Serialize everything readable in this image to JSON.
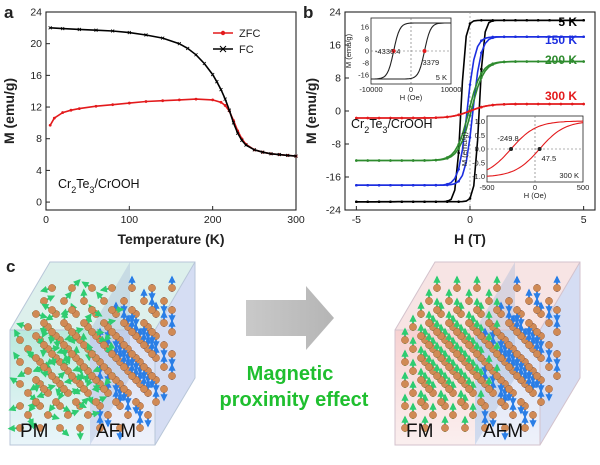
{
  "panel_labels": {
    "a": "a",
    "b": "b",
    "c": "c"
  },
  "colors": {
    "zfc": "#e31a1c",
    "fc": "#000000",
    "k5": "#000000",
    "k150": "#1c2ee0",
    "k200": "#2e8b2e",
    "k300": "#e31a1c",
    "green_arrow": "#2ecc71",
    "blue_arrow": "#2a7ee6",
    "atom": "#d08a55",
    "effect_text": "#1fbf2f"
  },
  "chart_data": [
    {
      "type": "line",
      "xlabel": "Temperature (K)",
      "ylabel": "M (emu/g)",
      "xlim": [
        0,
        300
      ],
      "ylim": [
        -1,
        24
      ],
      "xticks": [
        0,
        100,
        200,
        300
      ],
      "yticks": [
        0,
        4,
        8,
        12,
        16,
        20,
        24
      ],
      "annotation": "Cr2Te3/CrOOH",
      "legend": "top-right",
      "series": [
        {
          "name": "ZFC",
          "x": [
            5,
            10,
            20,
            30,
            40,
            60,
            80,
            100,
            120,
            140,
            160,
            180,
            200,
            210,
            215,
            220,
            225,
            230,
            235,
            240,
            250,
            260,
            270,
            280,
            290,
            300
          ],
          "y": [
            9.7,
            10.6,
            11.3,
            11.6,
            11.8,
            12.1,
            12.3,
            12.5,
            12.7,
            12.8,
            12.9,
            13.0,
            12.9,
            12.6,
            12.2,
            11.5,
            10.3,
            9.0,
            8.0,
            7.3,
            6.6,
            6.3,
            6.1,
            6.0,
            5.9,
            5.8
          ]
        },
        {
          "name": "FC",
          "x": [
            5,
            20,
            40,
            60,
            80,
            100,
            120,
            140,
            160,
            170,
            180,
            190,
            200,
            205,
            210,
            215,
            220,
            225,
            230,
            235,
            240,
            250,
            260,
            270,
            280,
            290,
            300
          ],
          "y": [
            22.0,
            21.9,
            21.8,
            21.7,
            21.6,
            21.4,
            21.1,
            20.7,
            20.0,
            19.4,
            18.6,
            17.5,
            16.1,
            15.2,
            14.2,
            13.0,
            11.6,
            10.0,
            8.7,
            7.8,
            7.2,
            6.6,
            6.3,
            6.1,
            6.0,
            5.9,
            5.8
          ]
        }
      ]
    },
    {
      "type": "line",
      "xlabel": "H (T)",
      "ylabel": "M (emu/g)",
      "xlim": [
        -5.5,
        5.5
      ],
      "ylim": [
        -24,
        24
      ],
      "xticks": [
        -5,
        0,
        5
      ],
      "yticks": [
        -24,
        -16,
        -8,
        0,
        8,
        16,
        24
      ],
      "annotation": "Cr2Te3/CrOOH",
      "series": [
        {
          "name": "5 K",
          "ms": 22.0,
          "hc": 0.4,
          "w": 0.2
        },
        {
          "name": "150 K",
          "ms": 18.0,
          "hc": 0.13,
          "w": 0.35
        },
        {
          "name": "200 K",
          "ms": 12.0,
          "hc": 0.05,
          "w": 0.55
        },
        {
          "name": "300 K",
          "ms": 1.7,
          "hc": 0.005,
          "w": 0.8
        }
      ],
      "insets": [
        {
          "xlabel": "H (Oe)",
          "ylabel": "M (emu/g)",
          "label": "5 K",
          "xlim": [
            -10000,
            10000
          ],
          "ylim": [
            -22,
            22
          ],
          "xticks": [
            -10000,
            0,
            10000
          ],
          "yticks": [
            -16,
            -8,
            0,
            8,
            16
          ],
          "coercive_points": [
            -4336.4,
            3379.0
          ]
        },
        {
          "xlabel": "H (Oe)",
          "ylabel": "M (emu/g)",
          "label": "300 K",
          "xlim": [
            -500,
            500
          ],
          "ylim": [
            -1.2,
            1.2
          ],
          "xticks": [
            -500,
            0,
            500
          ],
          "yticks": [
            -1.0,
            -0.5,
            0.0,
            0.5,
            1.0
          ],
          "coercive_points": [
            -249.8,
            47.5
          ]
        }
      ]
    }
  ],
  "panel_c": {
    "left_labels": {
      "pm": "PM",
      "afm": "AFM"
    },
    "right_labels": {
      "fm": "FM",
      "afm": "AFM"
    },
    "effect_line1": "Magnetic",
    "effect_line2": "proximity effect"
  }
}
